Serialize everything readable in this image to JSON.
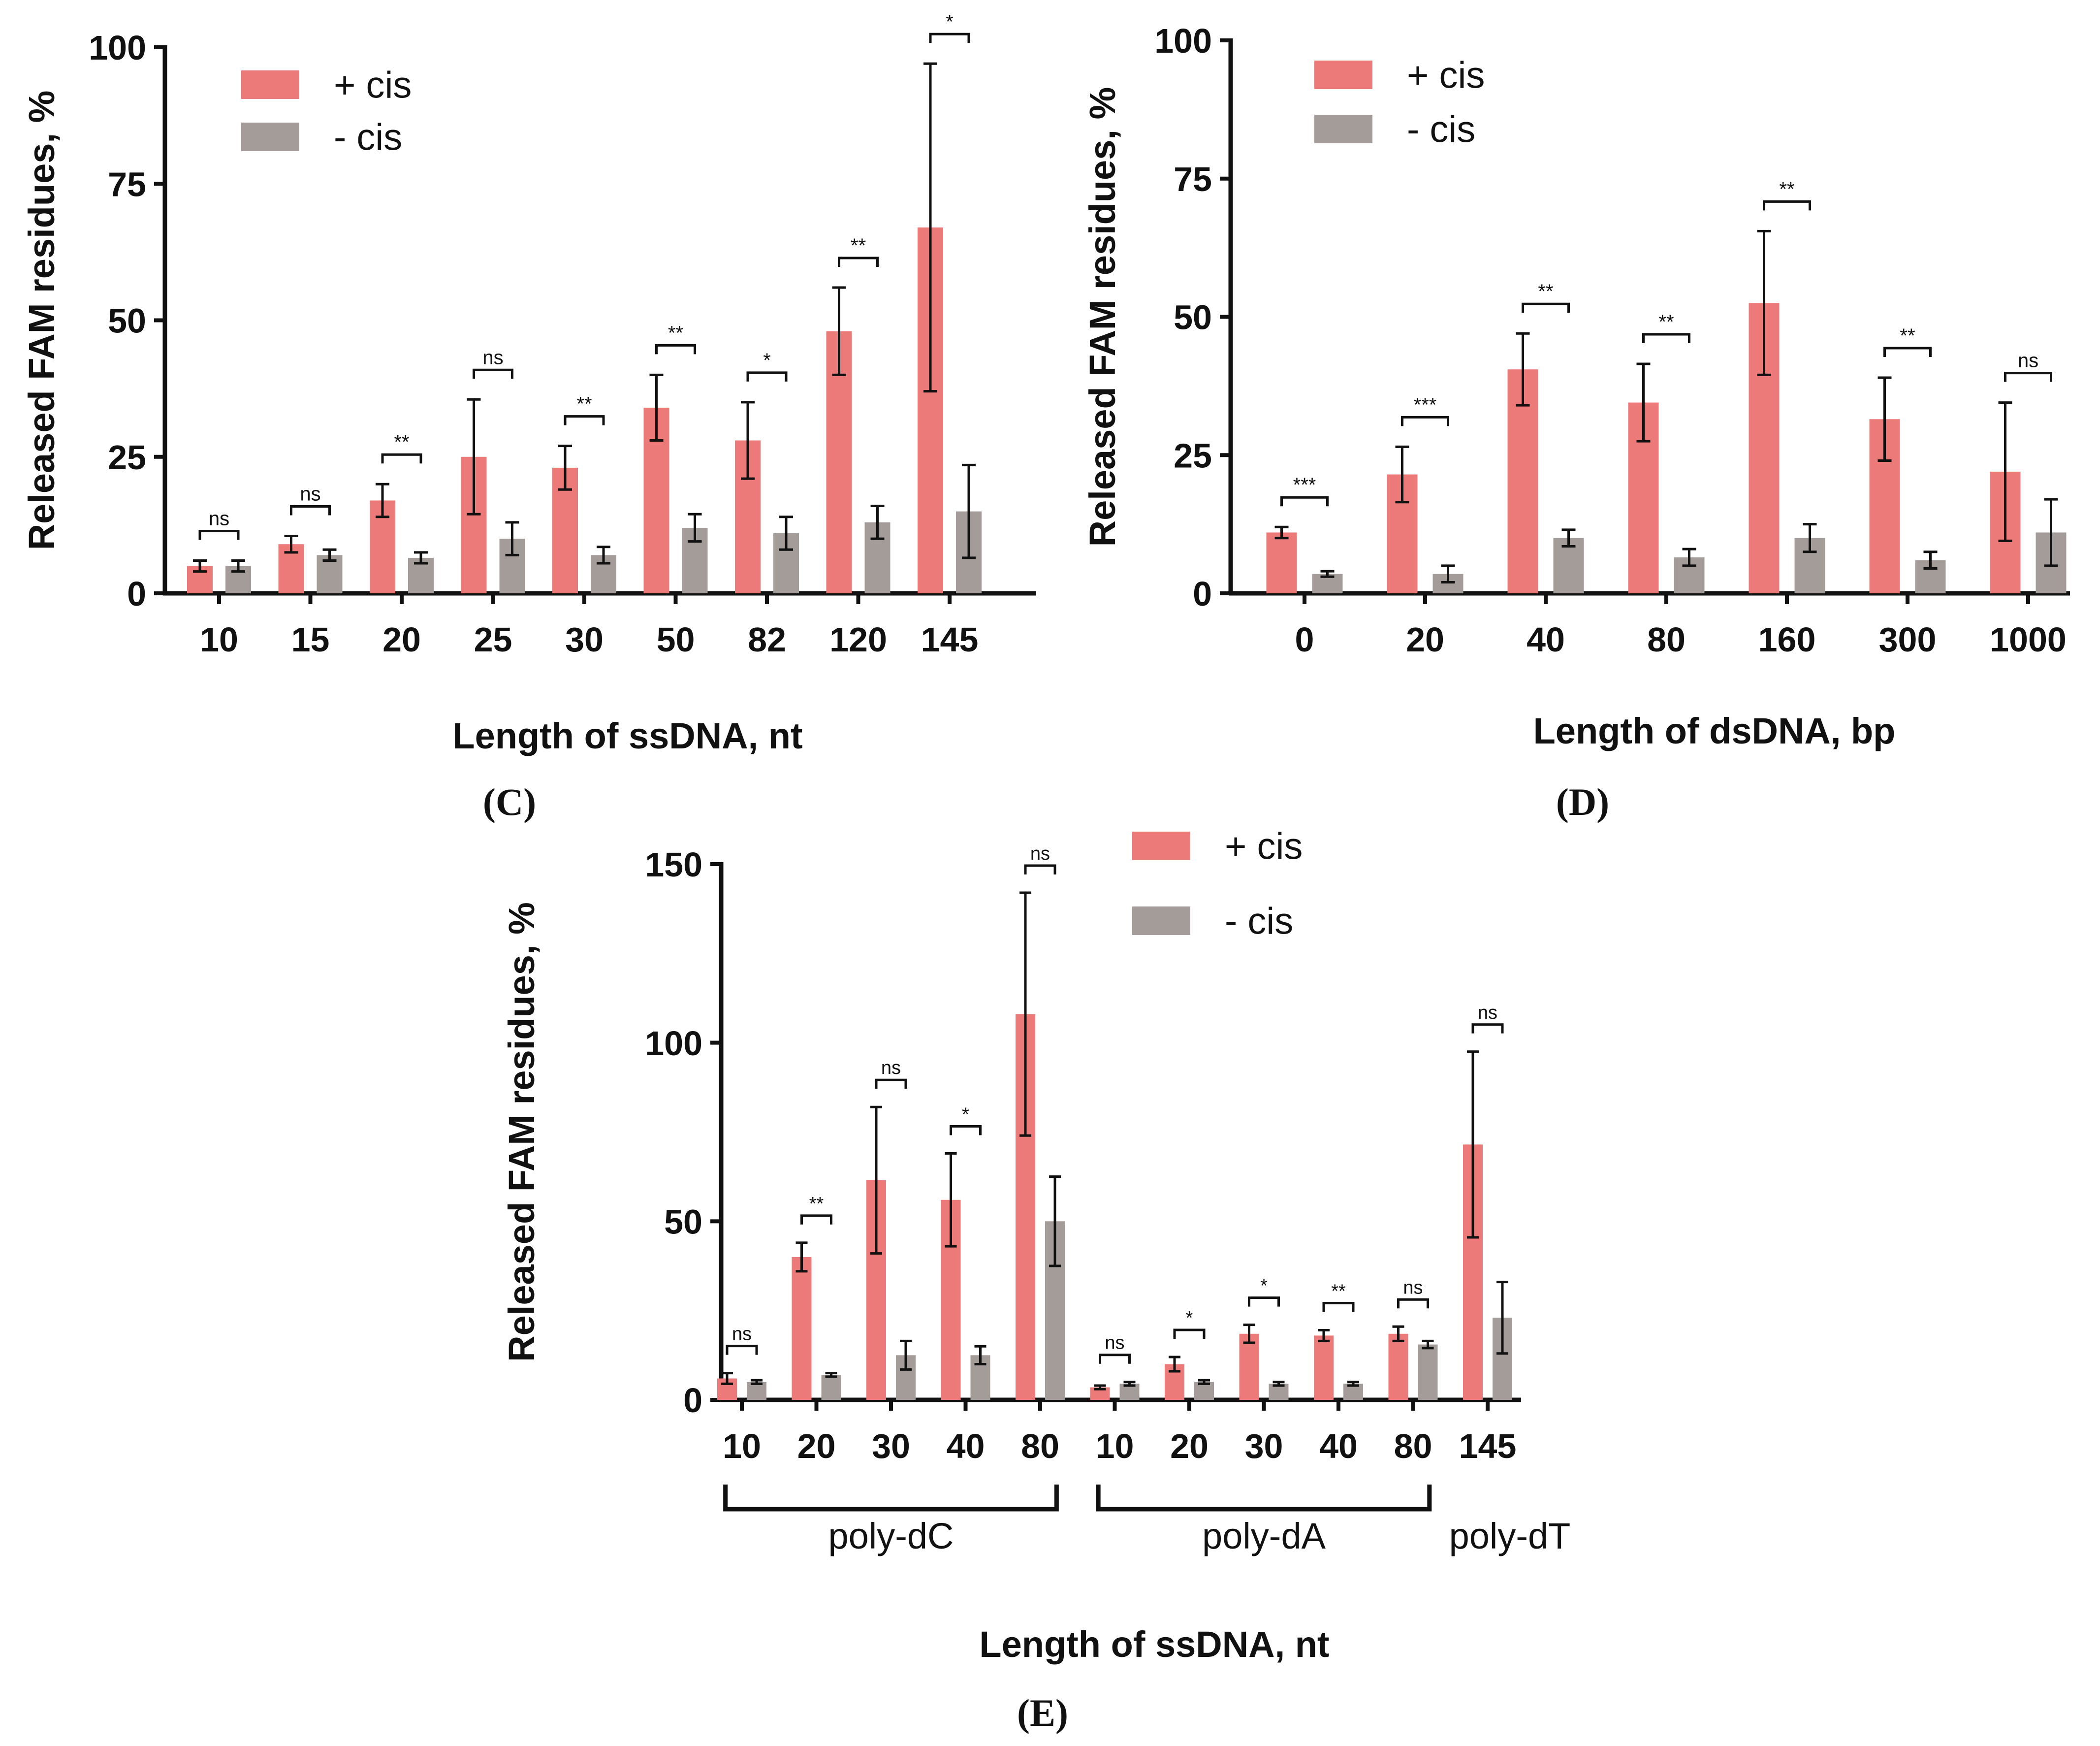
{
  "chart_data": [
    {
      "panel": "(C)",
      "type": "bar",
      "ylabel": "Released FAM residues, %",
      "xlabel": "Length of ssDNA, nt",
      "ylim": [
        0,
        100
      ],
      "yticks": [
        "0",
        "25",
        "50",
        "75",
        "100"
      ],
      "categories": [
        "10",
        "15",
        "20",
        "25",
        "30",
        "50",
        "82",
        "120",
        "145"
      ],
      "series": [
        {
          "name": "+ cis",
          "color": "#ec7a78",
          "values": [
            5,
            9,
            17,
            25,
            23,
            34,
            28,
            48,
            67
          ],
          "errors": [
            1,
            1.5,
            3,
            10.5,
            4,
            6,
            7,
            8,
            30
          ]
        },
        {
          "name": "- cis",
          "color": "#a39c98",
          "values": [
            5,
            7,
            6.5,
            10,
            7,
            12,
            11,
            13,
            15
          ],
          "errors": [
            1,
            1,
            1,
            3,
            1.5,
            2.5,
            3,
            3,
            8.5
          ]
        }
      ],
      "significance": [
        "ns",
        "ns",
        "**",
        "ns",
        "**",
        "**",
        "*",
        "**",
        "*"
      ],
      "legend_position": "top-left"
    },
    {
      "panel": "(D)",
      "type": "bar",
      "ylabel": "Released FAM residues, %",
      "xlabel": "Length of dsDNA, bp",
      "ylim": [
        0,
        100
      ],
      "yticks": [
        "0",
        "25",
        "50",
        "75",
        "100"
      ],
      "categories": [
        "0",
        "20",
        "40",
        "80",
        "160",
        "300",
        "1000"
      ],
      "series": [
        {
          "name": "+ cis",
          "color": "#ec7a78",
          "values": [
            11,
            21.5,
            40.5,
            34.5,
            52.5,
            31.5,
            22
          ],
          "errors": [
            1,
            5,
            6.5,
            7,
            13,
            7.5,
            12.5
          ]
        },
        {
          "name": "- cis",
          "color": "#a39c98",
          "values": [
            3.5,
            3.5,
            10,
            6.5,
            10,
            6,
            11
          ],
          "errors": [
            0.5,
            1.5,
            1.5,
            1.5,
            2.5,
            1.5,
            6
          ]
        }
      ],
      "significance": [
        "***",
        "***",
        "**",
        "**",
        "**",
        "**",
        "ns"
      ],
      "legend_position": "top-left"
    },
    {
      "panel": "(E)",
      "type": "bar",
      "ylabel": "Released FAM residues, %",
      "xlabel": "Length of ssDNA, nt",
      "ylim": [
        0,
        150
      ],
      "yticks": [
        "0",
        "50",
        "100",
        "150"
      ],
      "categories": [
        "10",
        "20",
        "30",
        "40",
        "80",
        "10",
        "20",
        "30",
        "40",
        "80",
        "145"
      ],
      "groups": [
        {
          "label": "poly-dC",
          "start": 0,
          "end": 4,
          "bracket": true
        },
        {
          "label": "poly-dA",
          "start": 5,
          "end": 9,
          "bracket": true
        },
        {
          "label": "poly-dT",
          "start": 10,
          "end": 10,
          "bracket": false
        }
      ],
      "series": [
        {
          "name": "+ cis",
          "color": "#ec7a78",
          "values": [
            6,
            40,
            61.5,
            56,
            108,
            3.5,
            10,
            18.5,
            18,
            18.5,
            71.5
          ],
          "errors": [
            1.5,
            4,
            20.5,
            13,
            34,
            0.5,
            2,
            2.5,
            1.5,
            2,
            26
          ]
        },
        {
          "name": "- cis",
          "color": "#a39c98",
          "values": [
            5,
            7,
            12.5,
            12.5,
            50,
            4.5,
            5,
            4.5,
            4.5,
            15.5,
            23
          ],
          "errors": [
            0.5,
            0.5,
            4,
            2.5,
            12.5,
            0.5,
            0.5,
            0.5,
            0.5,
            1,
            10
          ]
        }
      ],
      "significance": [
        "ns",
        "**",
        "ns",
        "*",
        "ns",
        "ns",
        "*",
        "*",
        "**",
        "ns",
        "ns"
      ],
      "legend_position": "top-center"
    }
  ]
}
